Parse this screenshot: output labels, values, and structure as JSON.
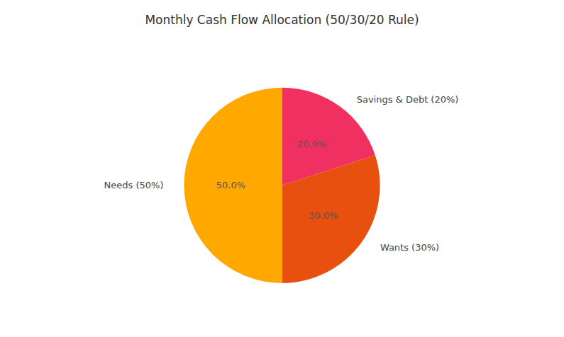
{
  "chart_data": {
    "type": "pie",
    "title": "Monthly Cash Flow Allocation (50/30/20 Rule)",
    "categories": [
      "Savings & Debt (20%)",
      "Wants (30%)",
      "Needs (50%)"
    ],
    "values": [
      20.0,
      30.0,
      50.0
    ],
    "value_labels": [
      "20.0%",
      "30.0%",
      "50.0%"
    ],
    "colors": [
      "#F03060",
      "#E85010",
      "#FFA800"
    ],
    "data_labels": true
  }
}
